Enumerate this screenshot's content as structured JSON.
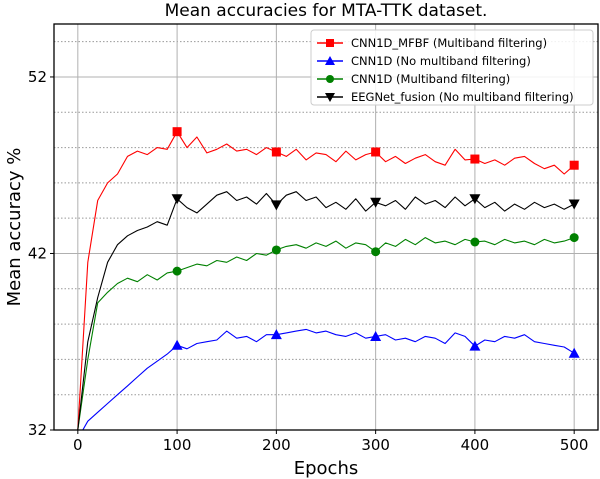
{
  "chart_data": {
    "type": "line",
    "title": "Mean accuracies for MTA-TTK dataset.",
    "xlabel": "Epochs",
    "ylabel": "Mean accuracy %",
    "xlim": [
      -24,
      524
    ],
    "ylim": [
      32,
      55
    ],
    "xticks": [
      "0",
      "100",
      "200",
      "300",
      "400",
      "500"
    ],
    "yticks": [
      "32",
      "42",
      "52"
    ],
    "grid": true,
    "legend_position": "top-right",
    "x": [
      0,
      10,
      20,
      30,
      40,
      50,
      60,
      70,
      80,
      90,
      100,
      110,
      120,
      130,
      140,
      150,
      160,
      170,
      180,
      190,
      200,
      210,
      220,
      230,
      240,
      250,
      260,
      270,
      280,
      290,
      300,
      310,
      320,
      330,
      340,
      350,
      360,
      370,
      380,
      390,
      400,
      410,
      420,
      430,
      440,
      450,
      460,
      470,
      480,
      490,
      500
    ],
    "marker_every": 100,
    "series": [
      {
        "name": "CNN1D_MFBF (Multiband filtering)",
        "color": "#ff0000",
        "marker": "square",
        "values": [
          32,
          41.5,
          45,
          46,
          46.5,
          47.5,
          47.8,
          47.6,
          48.0,
          47.9,
          48.9,
          48.0,
          48.6,
          47.7,
          47.9,
          48.2,
          47.8,
          47.9,
          47.6,
          48.0,
          47.75,
          47.5,
          47.9,
          47.3,
          47.7,
          47.6,
          47.2,
          47.8,
          47.3,
          47.6,
          47.75,
          47.2,
          47.5,
          47.1,
          47.4,
          47.6,
          47.2,
          47.0,
          47.9,
          47.3,
          47.35,
          47.1,
          47.3,
          47.0,
          47.4,
          47.5,
          47.1,
          46.8,
          47.0,
          46.5,
          47.0
        ]
      },
      {
        "name": "CNN1D (No multiband filtering)",
        "color": "#0000ff",
        "marker": "triangle-up",
        "values": [
          31.5,
          32.5,
          33.0,
          33.5,
          34.0,
          34.5,
          35.0,
          35.5,
          35.9,
          36.3,
          36.8,
          36.6,
          36.9,
          37.0,
          37.1,
          37.6,
          37.2,
          37.3,
          37.0,
          37.4,
          37.4,
          37.5,
          37.6,
          37.7,
          37.5,
          37.6,
          37.4,
          37.3,
          37.5,
          37.2,
          37.3,
          37.4,
          37.1,
          37.2,
          37.0,
          37.3,
          37.2,
          36.9,
          37.5,
          37.3,
          36.75,
          37.1,
          37.0,
          37.3,
          37.2,
          37.4,
          37.0,
          36.9,
          36.8,
          36.7,
          36.35
        ]
      },
      {
        "name": "CNN1D (Multiband filtering)",
        "color": "#008000",
        "marker": "circle",
        "values": [
          32,
          36,
          39.2,
          39.8,
          40.3,
          40.6,
          40.4,
          40.8,
          40.5,
          40.9,
          41.0,
          41.2,
          41.4,
          41.3,
          41.6,
          41.5,
          41.8,
          41.6,
          42.0,
          41.9,
          42.2,
          42.4,
          42.5,
          42.3,
          42.6,
          42.4,
          42.7,
          42.3,
          42.6,
          42.5,
          42.1,
          42.6,
          42.4,
          42.8,
          42.5,
          42.9,
          42.6,
          42.7,
          42.5,
          42.8,
          42.65,
          42.7,
          42.5,
          42.8,
          42.6,
          42.7,
          42.5,
          42.8,
          42.6,
          42.7,
          42.9
        ]
      },
      {
        "name": "EEGNet_fusion (No multiband filtering)",
        "color": "#000000",
        "marker": "triangle-down",
        "values": [
          32,
          37,
          39.5,
          41.5,
          42.5,
          43.0,
          43.3,
          43.5,
          43.8,
          43.6,
          45.1,
          44.6,
          44.3,
          44.8,
          45.3,
          45.5,
          45.0,
          45.2,
          44.8,
          45.4,
          44.75,
          45.3,
          45.5,
          45.0,
          45.2,
          44.6,
          44.9,
          44.5,
          45.1,
          44.4,
          44.9,
          44.7,
          45.0,
          44.5,
          45.2,
          44.8,
          45.0,
          44.6,
          45.2,
          44.7,
          45.1,
          44.6,
          44.9,
          44.4,
          44.8,
          44.5,
          44.9,
          44.6,
          44.8,
          44.5,
          44.8
        ]
      }
    ]
  }
}
